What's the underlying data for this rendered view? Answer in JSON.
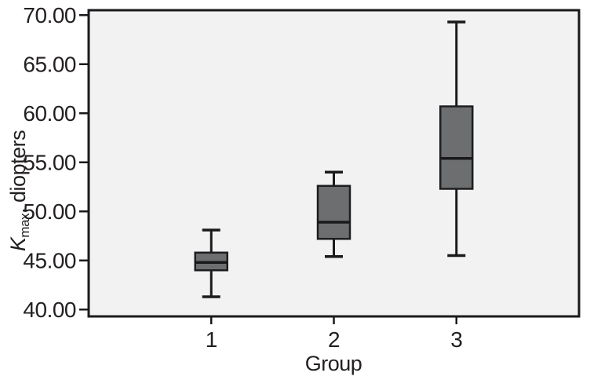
{
  "figure": {
    "ylabel_main": "K",
    "ylabel_sub": "max",
    "ylabel_rest": ", diopters"
  },
  "chart_data": {
    "type": "boxplot",
    "title": "",
    "xlabel": "Group",
    "ylabel": "Kmax, diopters",
    "categories": [
      "1",
      "2",
      "3"
    ],
    "ytick_values": [
      40,
      45,
      50,
      55,
      60,
      65,
      70
    ],
    "ytick_labels": [
      "40.00",
      "45.00",
      "50.00",
      "55.00",
      "60.00",
      "65.00",
      "70.00"
    ],
    "ylim": [
      39.3,
      70.5
    ],
    "grid": false,
    "legend": null,
    "series": [
      {
        "category": "1",
        "whisker_low": 41.3,
        "q1": 44.0,
        "median": 44.8,
        "q3": 45.8,
        "whisker_high": 48.1
      },
      {
        "category": "2",
        "whisker_low": 45.4,
        "q1": 47.2,
        "median": 48.9,
        "q3": 52.6,
        "whisker_high": 54.0
      },
      {
        "category": "3",
        "whisker_low": 45.5,
        "q1": 52.3,
        "median": 55.4,
        "q3": 60.7,
        "whisker_high": 69.3
      }
    ],
    "colors": {
      "box_fill": "#6c6e70",
      "box_stroke": "#1e1e20",
      "median_line": "#1a1a1c",
      "whisker": "#1a1a1c",
      "plot_bg": "#f2f2f3",
      "frame": "#1a1a1c",
      "tick": "#1a1a1c",
      "text": "#231f20",
      "page_bg": "#ffffff"
    }
  }
}
